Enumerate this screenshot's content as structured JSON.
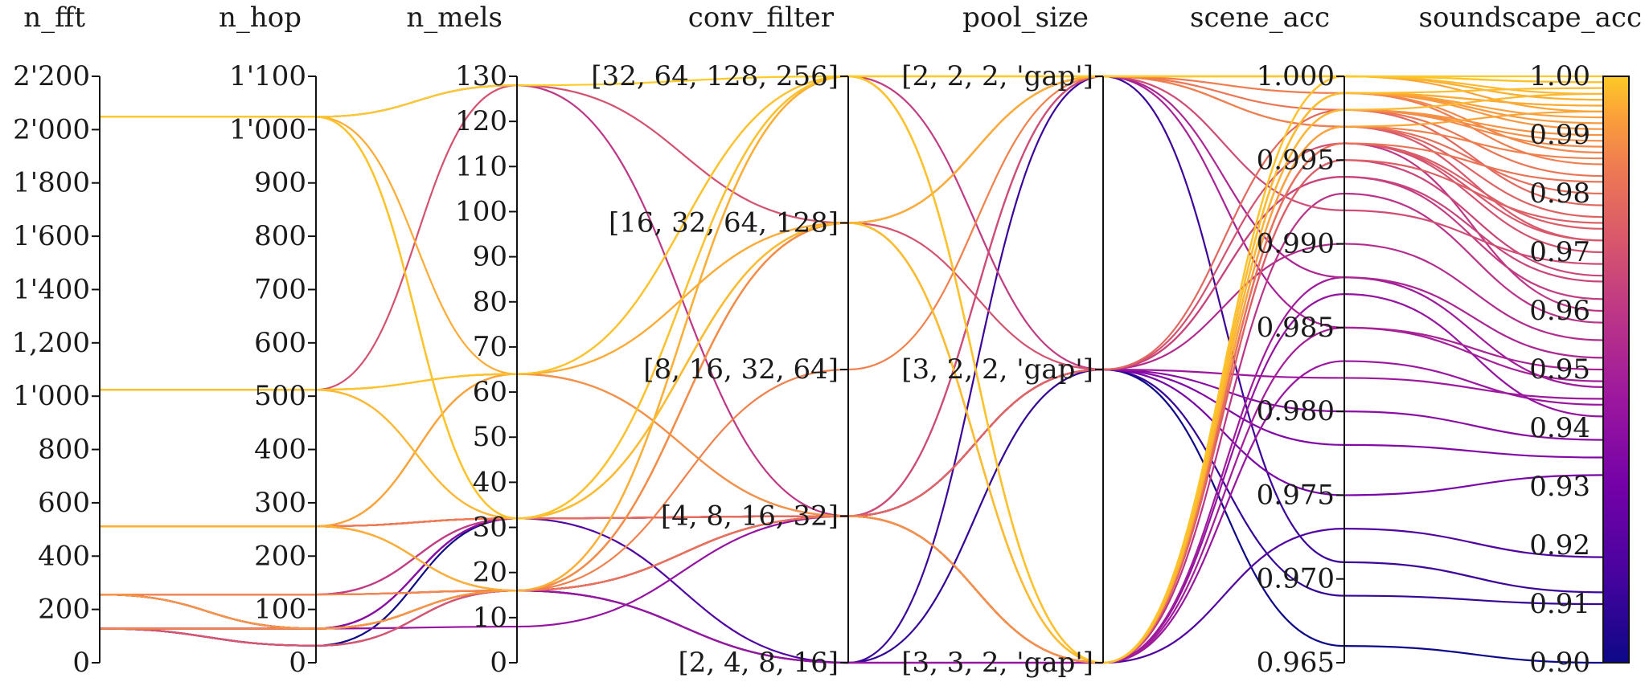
{
  "chart_data": {
    "type": "parallel_coordinates",
    "color_by": "soundscape_acc",
    "colormap": "plasma",
    "colors": {
      "low": "#0d0887",
      "mid": "#cc4778",
      "high": "#f0f921"
    },
    "axes": [
      {
        "name": "n_fft",
        "title": "n_fft",
        "kind": "numeric",
        "range": [
          0,
          2200
        ],
        "ticks": [
          {
            "value": 0,
            "label": "0"
          },
          {
            "value": 200,
            "label": "200"
          },
          {
            "value": 400,
            "label": "400"
          },
          {
            "value": 600,
            "label": "600"
          },
          {
            "value": 800,
            "label": "800"
          },
          {
            "value": 1000,
            "label": "1'000"
          },
          {
            "value": 1200,
            "label": "1,200"
          },
          {
            "value": 1400,
            "label": "1'400"
          },
          {
            "value": 1600,
            "label": "1'600"
          },
          {
            "value": 1800,
            "label": "1'800"
          },
          {
            "value": 2000,
            "label": "2'000"
          },
          {
            "value": 2200,
            "label": "2'200"
          }
        ]
      },
      {
        "name": "n_hop",
        "title": "n_hop",
        "kind": "numeric",
        "range": [
          0,
          1100
        ],
        "ticks": [
          {
            "value": 0,
            "label": "0"
          },
          {
            "value": 100,
            "label": "100"
          },
          {
            "value": 200,
            "label": "200"
          },
          {
            "value": 300,
            "label": "300"
          },
          {
            "value": 400,
            "label": "400"
          },
          {
            "value": 500,
            "label": "500"
          },
          {
            "value": 600,
            "label": "600"
          },
          {
            "value": 700,
            "label": "700"
          },
          {
            "value": 800,
            "label": "800"
          },
          {
            "value": 900,
            "label": "900"
          },
          {
            "value": 1000,
            "label": "1'000"
          },
          {
            "value": 1100,
            "label": "1'100"
          }
        ]
      },
      {
        "name": "n_mels",
        "title": "n_mels",
        "kind": "numeric",
        "range": [
          0,
          130
        ],
        "ticks": [
          {
            "value": 0,
            "label": "0"
          },
          {
            "value": 10,
            "label": "10"
          },
          {
            "value": 20,
            "label": "20"
          },
          {
            "value": 30,
            "label": "30"
          },
          {
            "value": 40,
            "label": "40"
          },
          {
            "value": 50,
            "label": "50"
          },
          {
            "value": 60,
            "label": "60"
          },
          {
            "value": 70,
            "label": "70"
          },
          {
            "value": 80,
            "label": "80"
          },
          {
            "value": 90,
            "label": "90"
          },
          {
            "value": 100,
            "label": "100"
          },
          {
            "value": 110,
            "label": "110"
          },
          {
            "value": 120,
            "label": "120"
          },
          {
            "value": 130,
            "label": "130"
          }
        ]
      },
      {
        "name": "conv_filter",
        "title": "conv_filter",
        "kind": "categorical",
        "categories": [
          "[2, 4, 8, 16]",
          "[4, 8, 16, 32]",
          "[8, 16, 32, 64]",
          "[16, 32, 64, 128]",
          "[32, 64, 128, 256]"
        ]
      },
      {
        "name": "pool_size",
        "title": "pool_size",
        "kind": "categorical",
        "categories": [
          "[3, 3, 2, 'gap']",
          "[3, 2, 2, 'gap']",
          "[2, 2, 2, 'gap']"
        ]
      },
      {
        "name": "scene_acc",
        "title": "scene_acc",
        "kind": "numeric",
        "range": [
          0.965,
          1.0
        ],
        "ticks": [
          {
            "value": 0.965,
            "label": "0.965"
          },
          {
            "value": 0.97,
            "label": "0.970"
          },
          {
            "value": 0.975,
            "label": "0.975"
          },
          {
            "value": 0.98,
            "label": "0.980"
          },
          {
            "value": 0.985,
            "label": "0.985"
          },
          {
            "value": 0.99,
            "label": "0.990"
          },
          {
            "value": 0.995,
            "label": "0.995"
          },
          {
            "value": 1.0,
            "label": "1.000"
          }
        ]
      },
      {
        "name": "soundscape_acc",
        "title": "soundscape_acc",
        "kind": "numeric",
        "range": [
          0.9,
          1.0
        ],
        "ticks": [
          {
            "value": 0.9,
            "label": "0.90"
          },
          {
            "value": 0.91,
            "label": "0.91"
          },
          {
            "value": 0.92,
            "label": "0.92"
          },
          {
            "value": 0.93,
            "label": "0.93"
          },
          {
            "value": 0.94,
            "label": "0.94"
          },
          {
            "value": 0.95,
            "label": "0.95"
          },
          {
            "value": 0.96,
            "label": "0.96"
          },
          {
            "value": 0.97,
            "label": "0.97"
          },
          {
            "value": 0.98,
            "label": "0.98"
          },
          {
            "value": 0.99,
            "label": "0.99"
          },
          {
            "value": 1.0,
            "label": "1.00"
          }
        ]
      }
    ],
    "rows": [
      [
        2048,
        1024,
        128,
        4,
        2,
        1.0,
        1.0
      ],
      [
        2048,
        1024,
        32,
        4,
        2,
        1.0,
        0.999
      ],
      [
        2048,
        1024,
        32,
        3,
        0,
        0.999,
        0.998
      ],
      [
        2048,
        1024,
        32,
        4,
        0,
        0.998,
        0.997
      ],
      [
        2048,
        1024,
        32,
        3,
        2,
        1.0,
        0.996
      ],
      [
        2048,
        1024,
        64,
        4,
        0,
        0.999,
        0.995
      ],
      [
        2048,
        1024,
        32,
        3,
        0,
        0.997,
        0.994
      ],
      [
        2048,
        1024,
        128,
        1,
        0,
        0.996,
        0.96
      ],
      [
        1024,
        512,
        128,
        3,
        1,
        0.996,
        0.97
      ],
      [
        1024,
        512,
        64,
        4,
        0,
        1.0,
        0.999
      ],
      [
        1024,
        512,
        64,
        3,
        0,
        0.999,
        0.995
      ],
      [
        1024,
        512,
        64,
        1,
        0,
        0.998,
        0.99
      ],
      [
        1024,
        512,
        32,
        4,
        2,
        1.0,
        0.997
      ],
      [
        1024,
        512,
        32,
        3,
        0,
        0.999,
        0.993
      ],
      [
        512,
        256,
        64,
        4,
        0,
        1.0,
        0.994
      ],
      [
        512,
        256,
        64,
        3,
        0,
        0.999,
        0.992
      ],
      [
        512,
        256,
        64,
        1,
        1,
        0.994,
        0.965
      ],
      [
        512,
        256,
        32,
        3,
        2,
        0.999,
        0.985
      ],
      [
        512,
        256,
        32,
        1,
        1,
        0.998,
        0.978
      ],
      [
        512,
        256,
        32,
        1,
        0,
        0.997,
        0.98
      ],
      [
        512,
        256,
        32,
        1,
        0,
        0.995,
        0.975
      ],
      [
        512,
        256,
        32,
        1,
        1,
        0.982,
        0.945
      ],
      [
        512,
        256,
        32,
        1,
        2,
        0.985,
        0.95
      ],
      [
        512,
        256,
        32,
        3,
        2,
        0.997,
        0.972
      ],
      [
        512,
        256,
        16,
        4,
        0,
        1.0,
        0.996
      ],
      [
        512,
        256,
        16,
        3,
        0,
        0.998,
        0.989
      ],
      [
        512,
        256,
        16,
        1,
        0,
        0.996,
        0.982
      ],
      [
        512,
        256,
        16,
        1,
        2,
        0.992,
        0.968
      ],
      [
        256,
        128,
        16,
        3,
        0,
        0.998,
        0.988
      ],
      [
        256,
        128,
        16,
        1,
        0,
        0.996,
        0.974
      ],
      [
        256,
        128,
        16,
        1,
        0,
        0.995,
        0.966
      ],
      [
        256,
        128,
        32,
        1,
        1,
        0.99,
        0.955
      ],
      [
        256,
        128,
        32,
        4,
        1,
        0.994,
        0.962
      ],
      [
        256,
        128,
        16,
        3,
        2,
        0.988,
        0.952
      ],
      [
        256,
        64,
        16,
        4,
        0,
        0.999,
        0.991
      ],
      [
        256,
        64,
        16,
        2,
        2,
        0.997,
        0.986
      ],
      [
        256,
        64,
        16,
        1,
        0,
        0.985,
        0.948
      ],
      [
        256,
        64,
        16,
        1,
        1,
        0.978,
        0.935
      ],
      [
        256,
        64,
        32,
        1,
        1,
        0.975,
        0.932
      ],
      [
        256,
        64,
        16,
        0,
        0,
        0.983,
        0.944
      ],
      [
        256,
        64,
        16,
        0,
        2,
        0.971,
        0.912
      ],
      [
        128,
        64,
        16,
        4,
        0,
        0.999,
        0.987
      ],
      [
        128,
        64,
        16,
        3,
        0,
        0.997,
        0.976
      ],
      [
        128,
        64,
        16,
        1,
        0,
        0.993,
        0.958
      ],
      [
        128,
        64,
        8,
        1,
        0,
        0.987,
        0.942
      ],
      [
        128,
        64,
        32,
        1,
        1,
        0.98,
        0.938
      ],
      [
        128,
        64,
        32,
        0,
        0,
        0.973,
        0.918
      ],
      [
        128,
        32,
        16,
        1,
        0,
        0.988,
        0.947
      ],
      [
        128,
        32,
        16,
        4,
        0,
        0.996,
        0.972
      ],
      [
        128,
        32,
        32,
        1,
        1,
        0.966,
        0.9
      ],
      [
        128,
        32,
        16,
        0,
        1,
        0.969,
        0.91
      ],
      [
        128,
        64,
        16,
        3,
        2,
        0.998,
        0.983
      ]
    ]
  }
}
